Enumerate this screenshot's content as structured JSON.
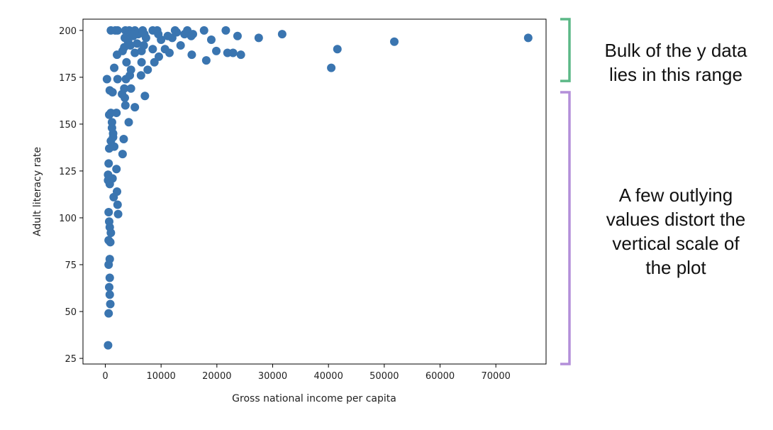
{
  "chart_data": {
    "type": "scatter",
    "title": "",
    "xlabel": "Gross national income per capita",
    "ylabel": "Adult literacy rate",
    "xlim": [
      -4000,
      79000
    ],
    "ylim": [
      22,
      206
    ],
    "xticks": [
      0,
      10000,
      20000,
      30000,
      40000,
      50000,
      60000,
      70000
    ],
    "yticks": [
      25,
      50,
      75,
      100,
      125,
      150,
      175,
      200
    ],
    "grid": false,
    "marker_color": "#3a75b0",
    "points": [
      [
        500,
        32
      ],
      [
        600,
        49
      ],
      [
        900,
        54
      ],
      [
        800,
        59
      ],
      [
        700,
        63
      ],
      [
        800,
        68
      ],
      [
        800,
        78
      ],
      [
        600,
        75
      ],
      [
        600,
        88
      ],
      [
        900,
        87
      ],
      [
        1000,
        92
      ],
      [
        800,
        95
      ],
      [
        700,
        98
      ],
      [
        600,
        103
      ],
      [
        800,
        118
      ],
      [
        500,
        120
      ],
      [
        900,
        121
      ],
      [
        1300,
        121
      ],
      [
        500,
        123
      ],
      [
        600,
        129
      ],
      [
        1500,
        111
      ],
      [
        2100,
        114
      ],
      [
        2300,
        102
      ],
      [
        2200,
        107
      ],
      [
        2000,
        126
      ],
      [
        700,
        137
      ],
      [
        1600,
        138
      ],
      [
        1000,
        141
      ],
      [
        1400,
        143
      ],
      [
        1400,
        145
      ],
      [
        3300,
        142
      ],
      [
        3100,
        134
      ],
      [
        1200,
        148
      ],
      [
        1200,
        151
      ],
      [
        700,
        155
      ],
      [
        1000,
        156
      ],
      [
        2000,
        156
      ],
      [
        4200,
        151
      ],
      [
        5300,
        159
      ],
      [
        3600,
        160
      ],
      [
        3500,
        164
      ],
      [
        7100,
        165
      ],
      [
        800,
        168
      ],
      [
        1300,
        167
      ],
      [
        3000,
        166
      ],
      [
        3400,
        169
      ],
      [
        4600,
        169
      ],
      [
        300,
        174
      ],
      [
        2200,
        174
      ],
      [
        3700,
        174
      ],
      [
        4400,
        176
      ],
      [
        6400,
        176
      ],
      [
        4600,
        179
      ],
      [
        7600,
        179
      ],
      [
        1600,
        180
      ],
      [
        40500,
        180
      ],
      [
        3800,
        183
      ],
      [
        6500,
        183
      ],
      [
        8800,
        183
      ],
      [
        9600,
        186
      ],
      [
        18100,
        184
      ],
      [
        2100,
        187
      ],
      [
        3100,
        189
      ],
      [
        5300,
        188
      ],
      [
        6500,
        189
      ],
      [
        8500,
        190
      ],
      [
        10700,
        190
      ],
      [
        11500,
        188
      ],
      [
        15500,
        187
      ],
      [
        19900,
        189
      ],
      [
        21900,
        188
      ],
      [
        22900,
        188
      ],
      [
        24300,
        187
      ],
      [
        41600,
        190
      ],
      [
        3400,
        191
      ],
      [
        4500,
        192
      ],
      [
        13500,
        192
      ],
      [
        5700,
        193
      ],
      [
        6900,
        192
      ],
      [
        4100,
        194
      ],
      [
        3500,
        196
      ],
      [
        5000,
        197
      ],
      [
        7300,
        196
      ],
      [
        10000,
        195
      ],
      [
        12000,
        196
      ],
      [
        15400,
        197
      ],
      [
        19000,
        195
      ],
      [
        27500,
        196
      ],
      [
        51800,
        194
      ],
      [
        75800,
        196
      ],
      [
        5900,
        198
      ],
      [
        11200,
        197
      ],
      [
        14200,
        198
      ],
      [
        15700,
        198
      ],
      [
        23700,
        197
      ],
      [
        31700,
        198
      ],
      [
        1000,
        200
      ],
      [
        1800,
        200
      ],
      [
        2200,
        200
      ],
      [
        3600,
        200
      ],
      [
        4300,
        200
      ],
      [
        5300,
        200
      ],
      [
        6700,
        200
      ],
      [
        8500,
        200
      ],
      [
        9300,
        200
      ],
      [
        12500,
        200
      ],
      [
        14700,
        200
      ],
      [
        17700,
        200
      ],
      [
        21600,
        200
      ],
      [
        12800,
        199
      ],
      [
        4700,
        198
      ],
      [
        9500,
        198
      ],
      [
        7000,
        198
      ]
    ]
  },
  "annotations": {
    "top": {
      "lines": [
        "Bulk of the y data",
        "lies in this range"
      ],
      "color": "#5cb887",
      "y_range": [
        173,
        206
      ]
    },
    "bottom": {
      "lines": [
        "A few outlying",
        "values distort the",
        "vertical scale of",
        "the plot"
      ],
      "color": "#b38fd9",
      "y_range": [
        22,
        167
      ]
    }
  }
}
